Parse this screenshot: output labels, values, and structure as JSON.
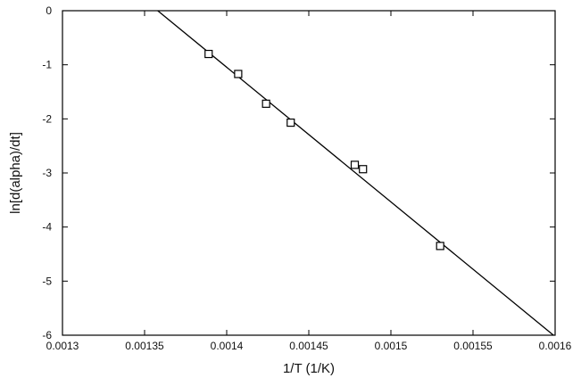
{
  "chart_data": {
    "type": "scatter",
    "xlabel": "1/T (1/K)",
    "ylabel": "ln[d(alpha)/dt]",
    "xlim": [
      0.0013,
      0.0016
    ],
    "ylim": [
      -6,
      0
    ],
    "x_ticks": [
      0.0013,
      0.00135,
      0.0014,
      0.00145,
      0.0015,
      0.00155,
      0.0016
    ],
    "x_tick_labels": [
      "0.0013",
      "0.00135",
      "0.0014",
      "0.00145",
      "0.0015",
      "0.00155",
      "0.0016"
    ],
    "y_ticks": [
      0,
      -1,
      -2,
      -3,
      -4,
      -5,
      -6
    ],
    "y_tick_labels": [
      "0",
      "-1",
      "-2",
      "-3",
      "-4",
      "-5",
      "-6"
    ],
    "grid": false,
    "series": [
      {
        "marker": "open-square",
        "x": [
          0.001389,
          0.001407,
          0.001424,
          0.001439,
          0.001478,
          0.001483,
          0.00153
        ],
        "y": [
          -0.8,
          -1.17,
          -1.72,
          -2.07,
          -2.85,
          -2.93,
          -4.35
        ]
      }
    ],
    "fit_line": {
      "x": [
        0.001358,
        0.001599
      ],
      "y": [
        0.0,
        -6.0
      ]
    }
  }
}
